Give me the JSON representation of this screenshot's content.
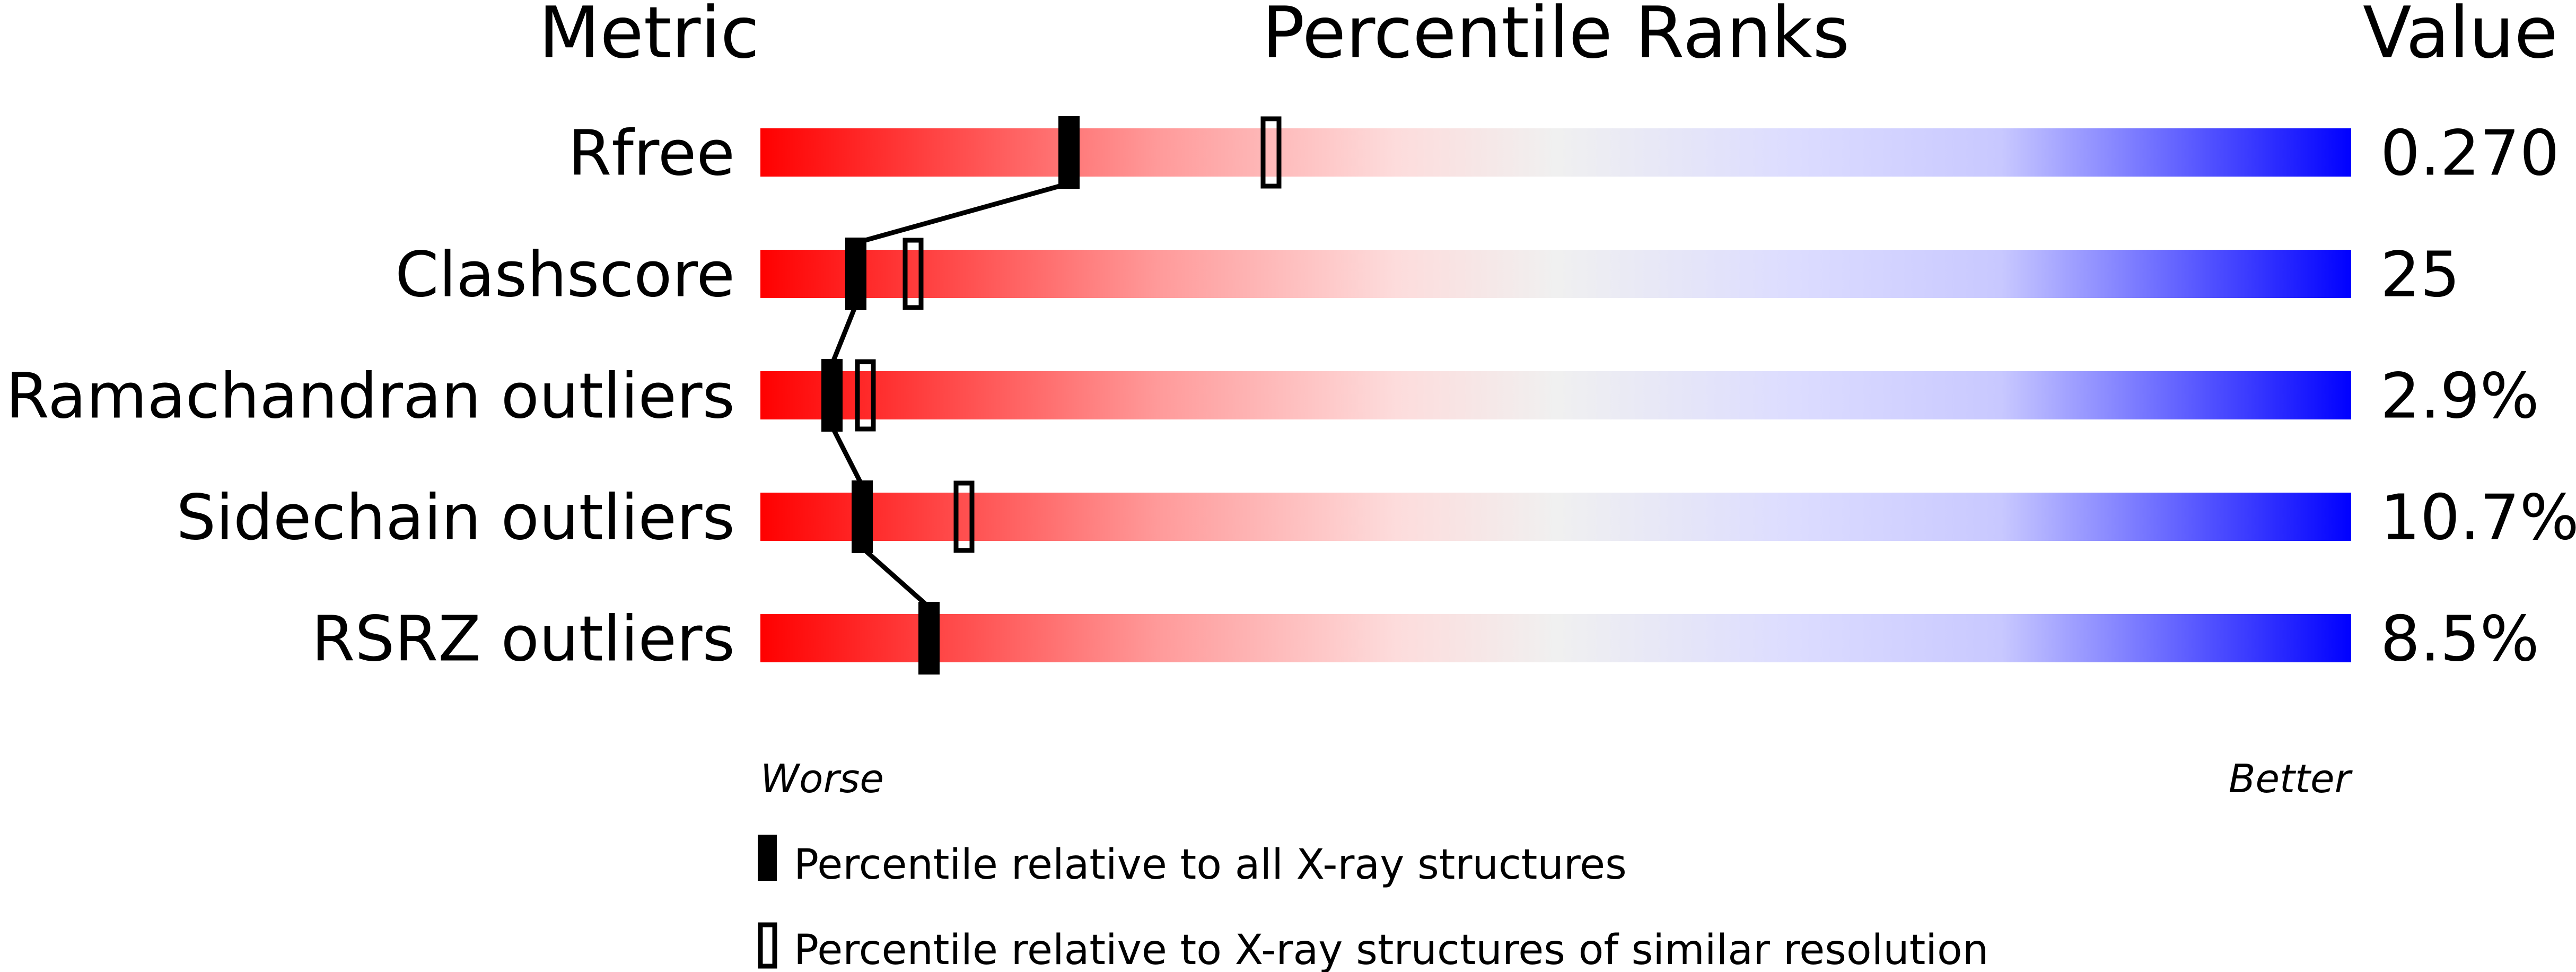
{
  "headers": {
    "metric": "Metric",
    "percentile": "Percentile Ranks",
    "value": "Value"
  },
  "axis": {
    "worse": "Worse",
    "better": "Better"
  },
  "legend": {
    "all": "Percentile relative to all X-ray structures",
    "similar": "Percentile relative to X-ray structures of similar resolution"
  },
  "colors": {
    "worse": "#ff0000",
    "middle": "#f0f0f0",
    "better": "#0000ff",
    "marker": "#000000"
  },
  "chart_data": {
    "type": "bar",
    "title": "Percentile Ranks",
    "xlim": [
      0,
      100
    ],
    "categories": [
      "Rfree",
      "Clashscore",
      "Ramachandran outliers",
      "Sidechain outliers",
      "RSRZ outliers"
    ],
    "values": [
      "0.270",
      "25",
      "2.9%",
      "10.7%",
      "8.5%"
    ],
    "series": [
      {
        "name": "Percentile relative to all X-ray structures",
        "values": [
          19.4,
          6.0,
          4.5,
          6.4,
          10.6
        ]
      },
      {
        "name": "Percentile relative to X-ray structures of similar resolution",
        "values": [
          32.1,
          9.6,
          6.6,
          12.8,
          null
        ]
      }
    ]
  }
}
